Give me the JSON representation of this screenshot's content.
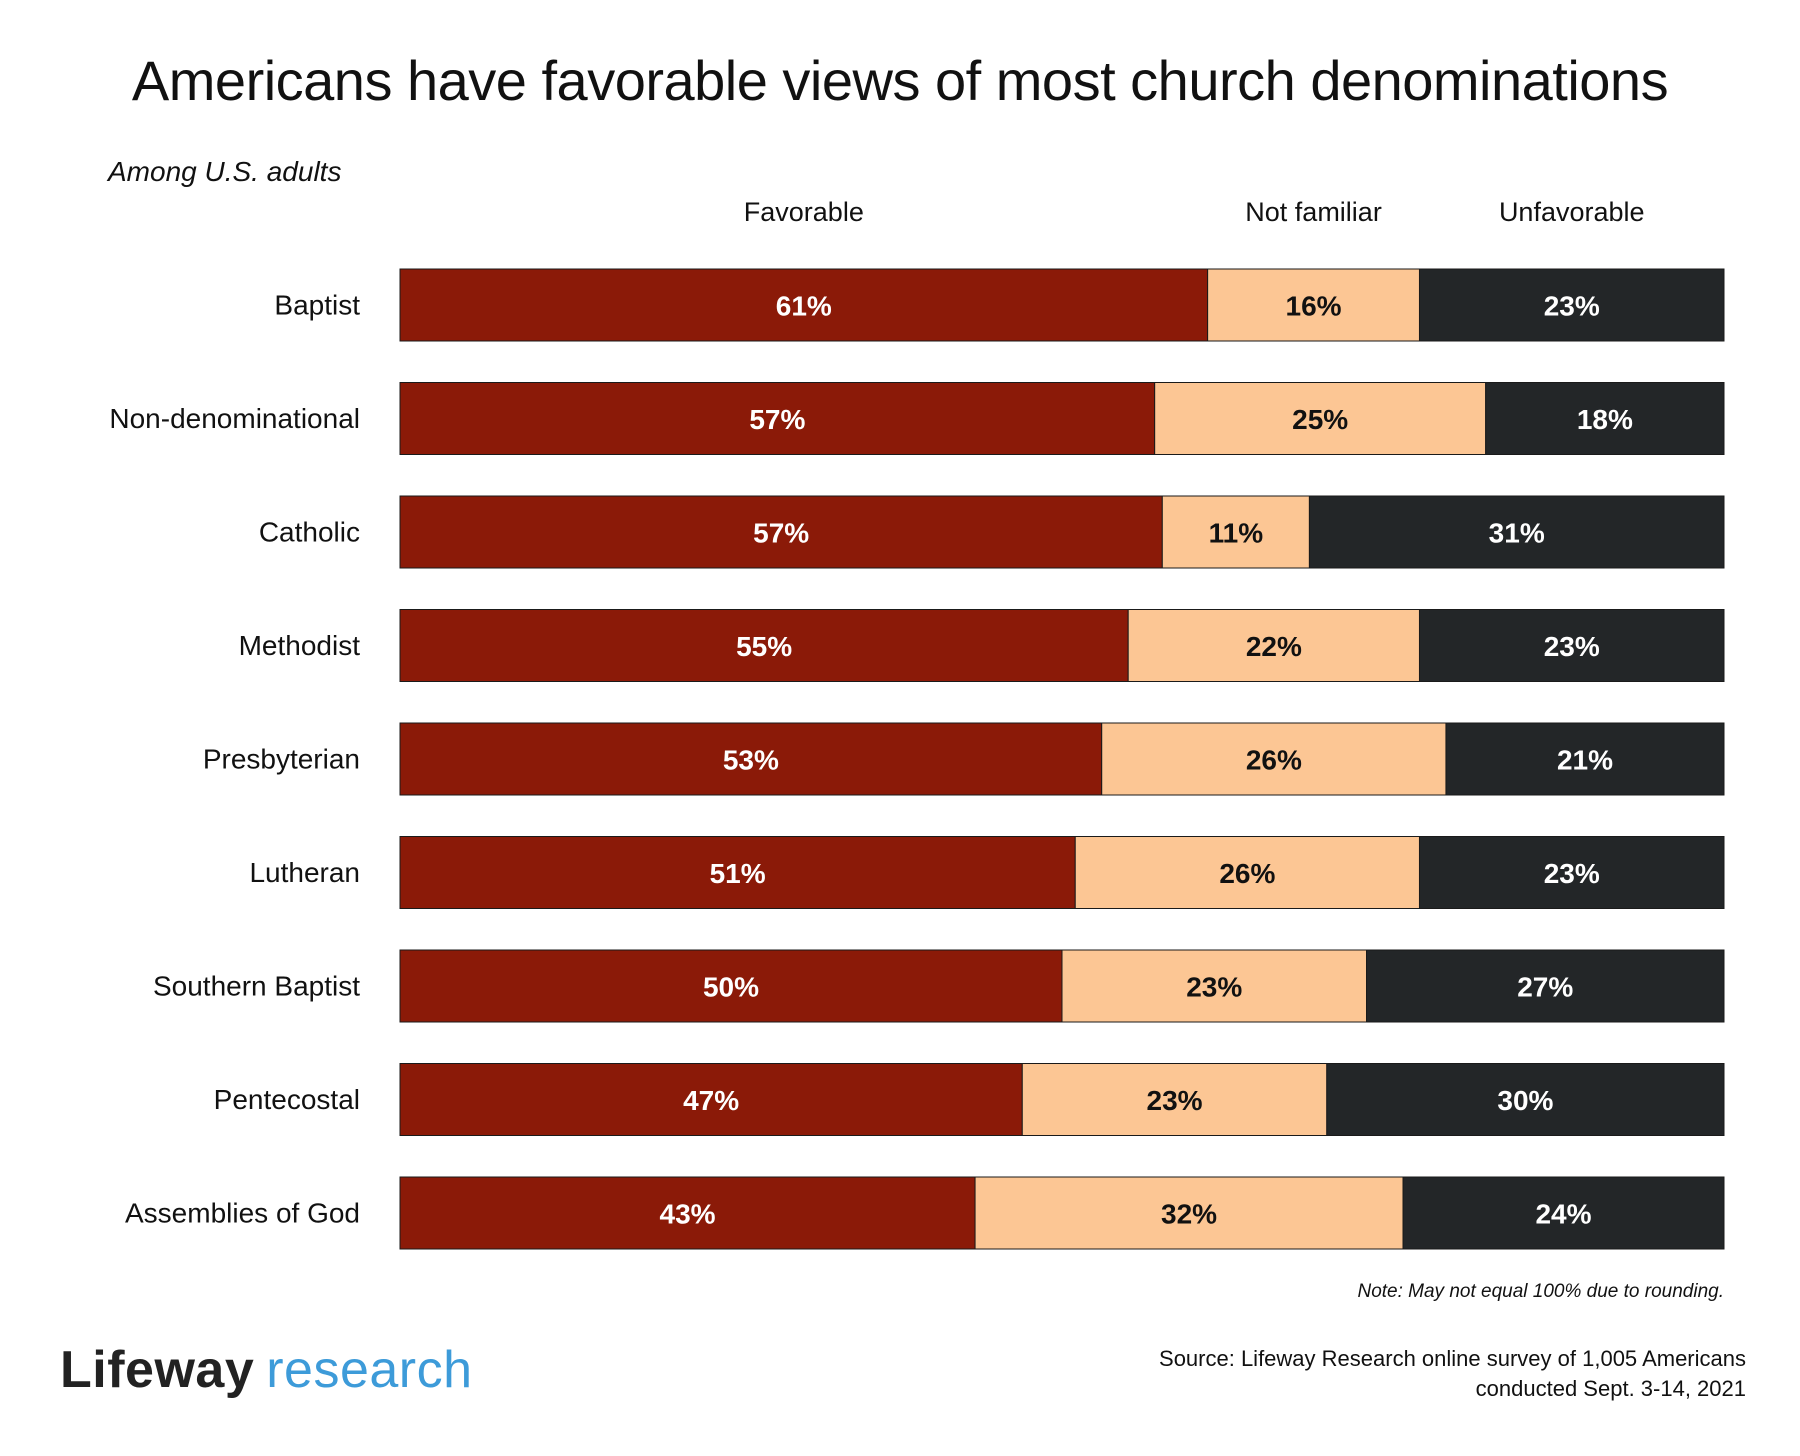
{
  "title": "Americans have favorable views of most church denominations",
  "subtitle": "Among U.S. adults",
  "note": "Note: May not equal 100% due to rounding.",
  "logo": {
    "brand": "Lifeway",
    "sub": "research"
  },
  "source": {
    "line1": "Source: Lifeway Research online survey of 1,005 Americans",
    "line2": "conducted Sept. 3-14, 2021"
  },
  "colors": {
    "favorable": "#8b1a08",
    "not_familiar": "#fcc694",
    "unfavorable": "#232628",
    "label_light": "#ffffff",
    "label_dark": "#111111"
  },
  "chart_data": {
    "type": "bar",
    "orientation": "horizontal",
    "stacked": true,
    "categories": [
      "Baptist",
      "Non-denominational",
      "Catholic",
      "Methodist",
      "Presbyterian",
      "Lutheran",
      "Southern Baptist",
      "Pentecostal",
      "Assemblies of God"
    ],
    "series": [
      {
        "name": "Favorable",
        "values": [
          61,
          57,
          57,
          55,
          53,
          51,
          50,
          47,
          43
        ]
      },
      {
        "name": "Not familiar",
        "values": [
          16,
          25,
          11,
          22,
          26,
          26,
          23,
          23,
          32
        ]
      },
      {
        "name": "Unfavorable",
        "values": [
          23,
          18,
          31,
          23,
          21,
          23,
          27,
          30,
          24
        ]
      }
    ],
    "value_suffix": "%",
    "legend_placement": "top",
    "grid": false
  }
}
